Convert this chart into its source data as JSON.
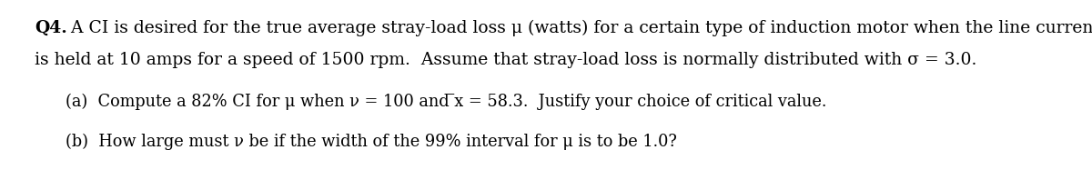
{
  "background_color": "#ffffff",
  "figsize": [
    12.0,
    1.87
  ],
  "dpi": 100,
  "text_color": "#000000",
  "font_size": 13.5,
  "font_size_sub": 12.8,
  "lines": {
    "q4_bold": "Q4.",
    "q4_rest": " A CI is desired for the true average stray-load loss μ (watts) for a certain type of induction motor when the line current",
    "line2": "is held at 10 amps for a speed of 1500 rpm.  Assume that stray-load loss is normally distributed with σ = 3.0.",
    "line_a": "(a)  Compute a 82% CI for μ when n = 100 and ̅x = 58.3.  Justify your choice of critical value.",
    "line_b": "(b)  How large must n be if the width of the 99% interval for μ is to be 1.0?"
  }
}
